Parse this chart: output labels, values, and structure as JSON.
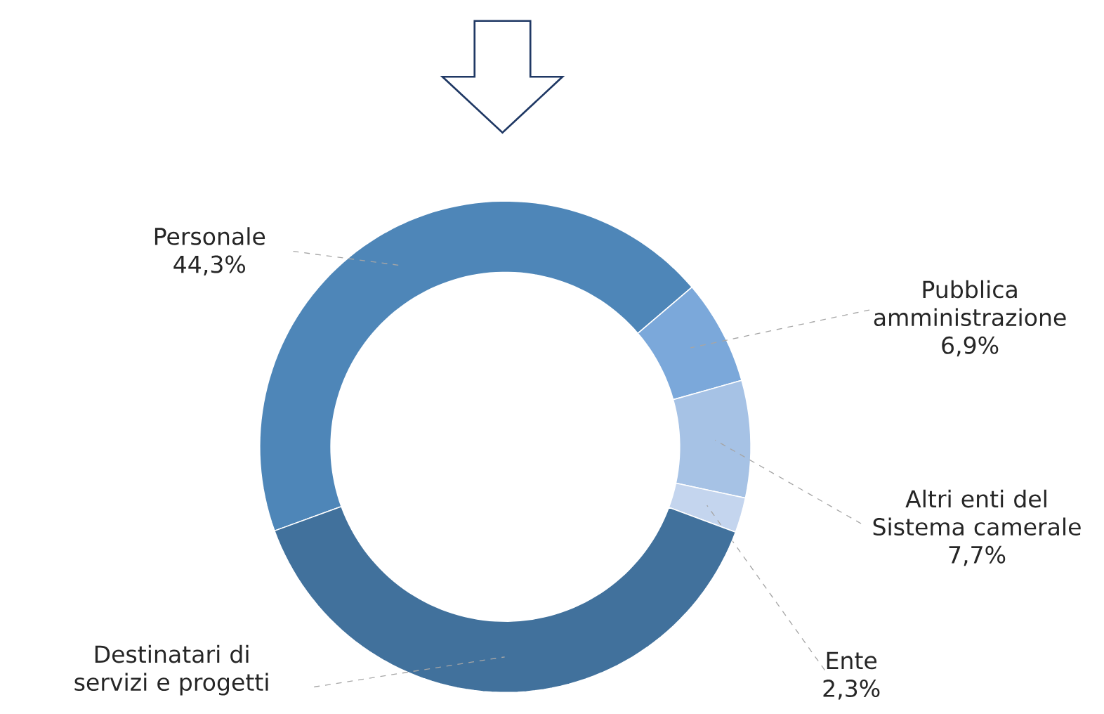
{
  "chart_data": {
    "type": "donut",
    "categories": [
      "Personale",
      "Pubblica amministrazione",
      "Altri enti del Sistema camerale",
      "Ente",
      "Destinatari di servizi e progetti"
    ],
    "values": [
      44.3,
      6.9,
      7.7,
      2.3,
      38.8
    ],
    "value_labels": [
      "44,3%",
      "6,9%",
      "7,7%",
      "2,3%",
      null
    ],
    "colors": [
      "#4e86b8",
      "#7ba8da",
      "#a6c2e5",
      "#c4d5ee",
      "#41719c"
    ]
  }
}
